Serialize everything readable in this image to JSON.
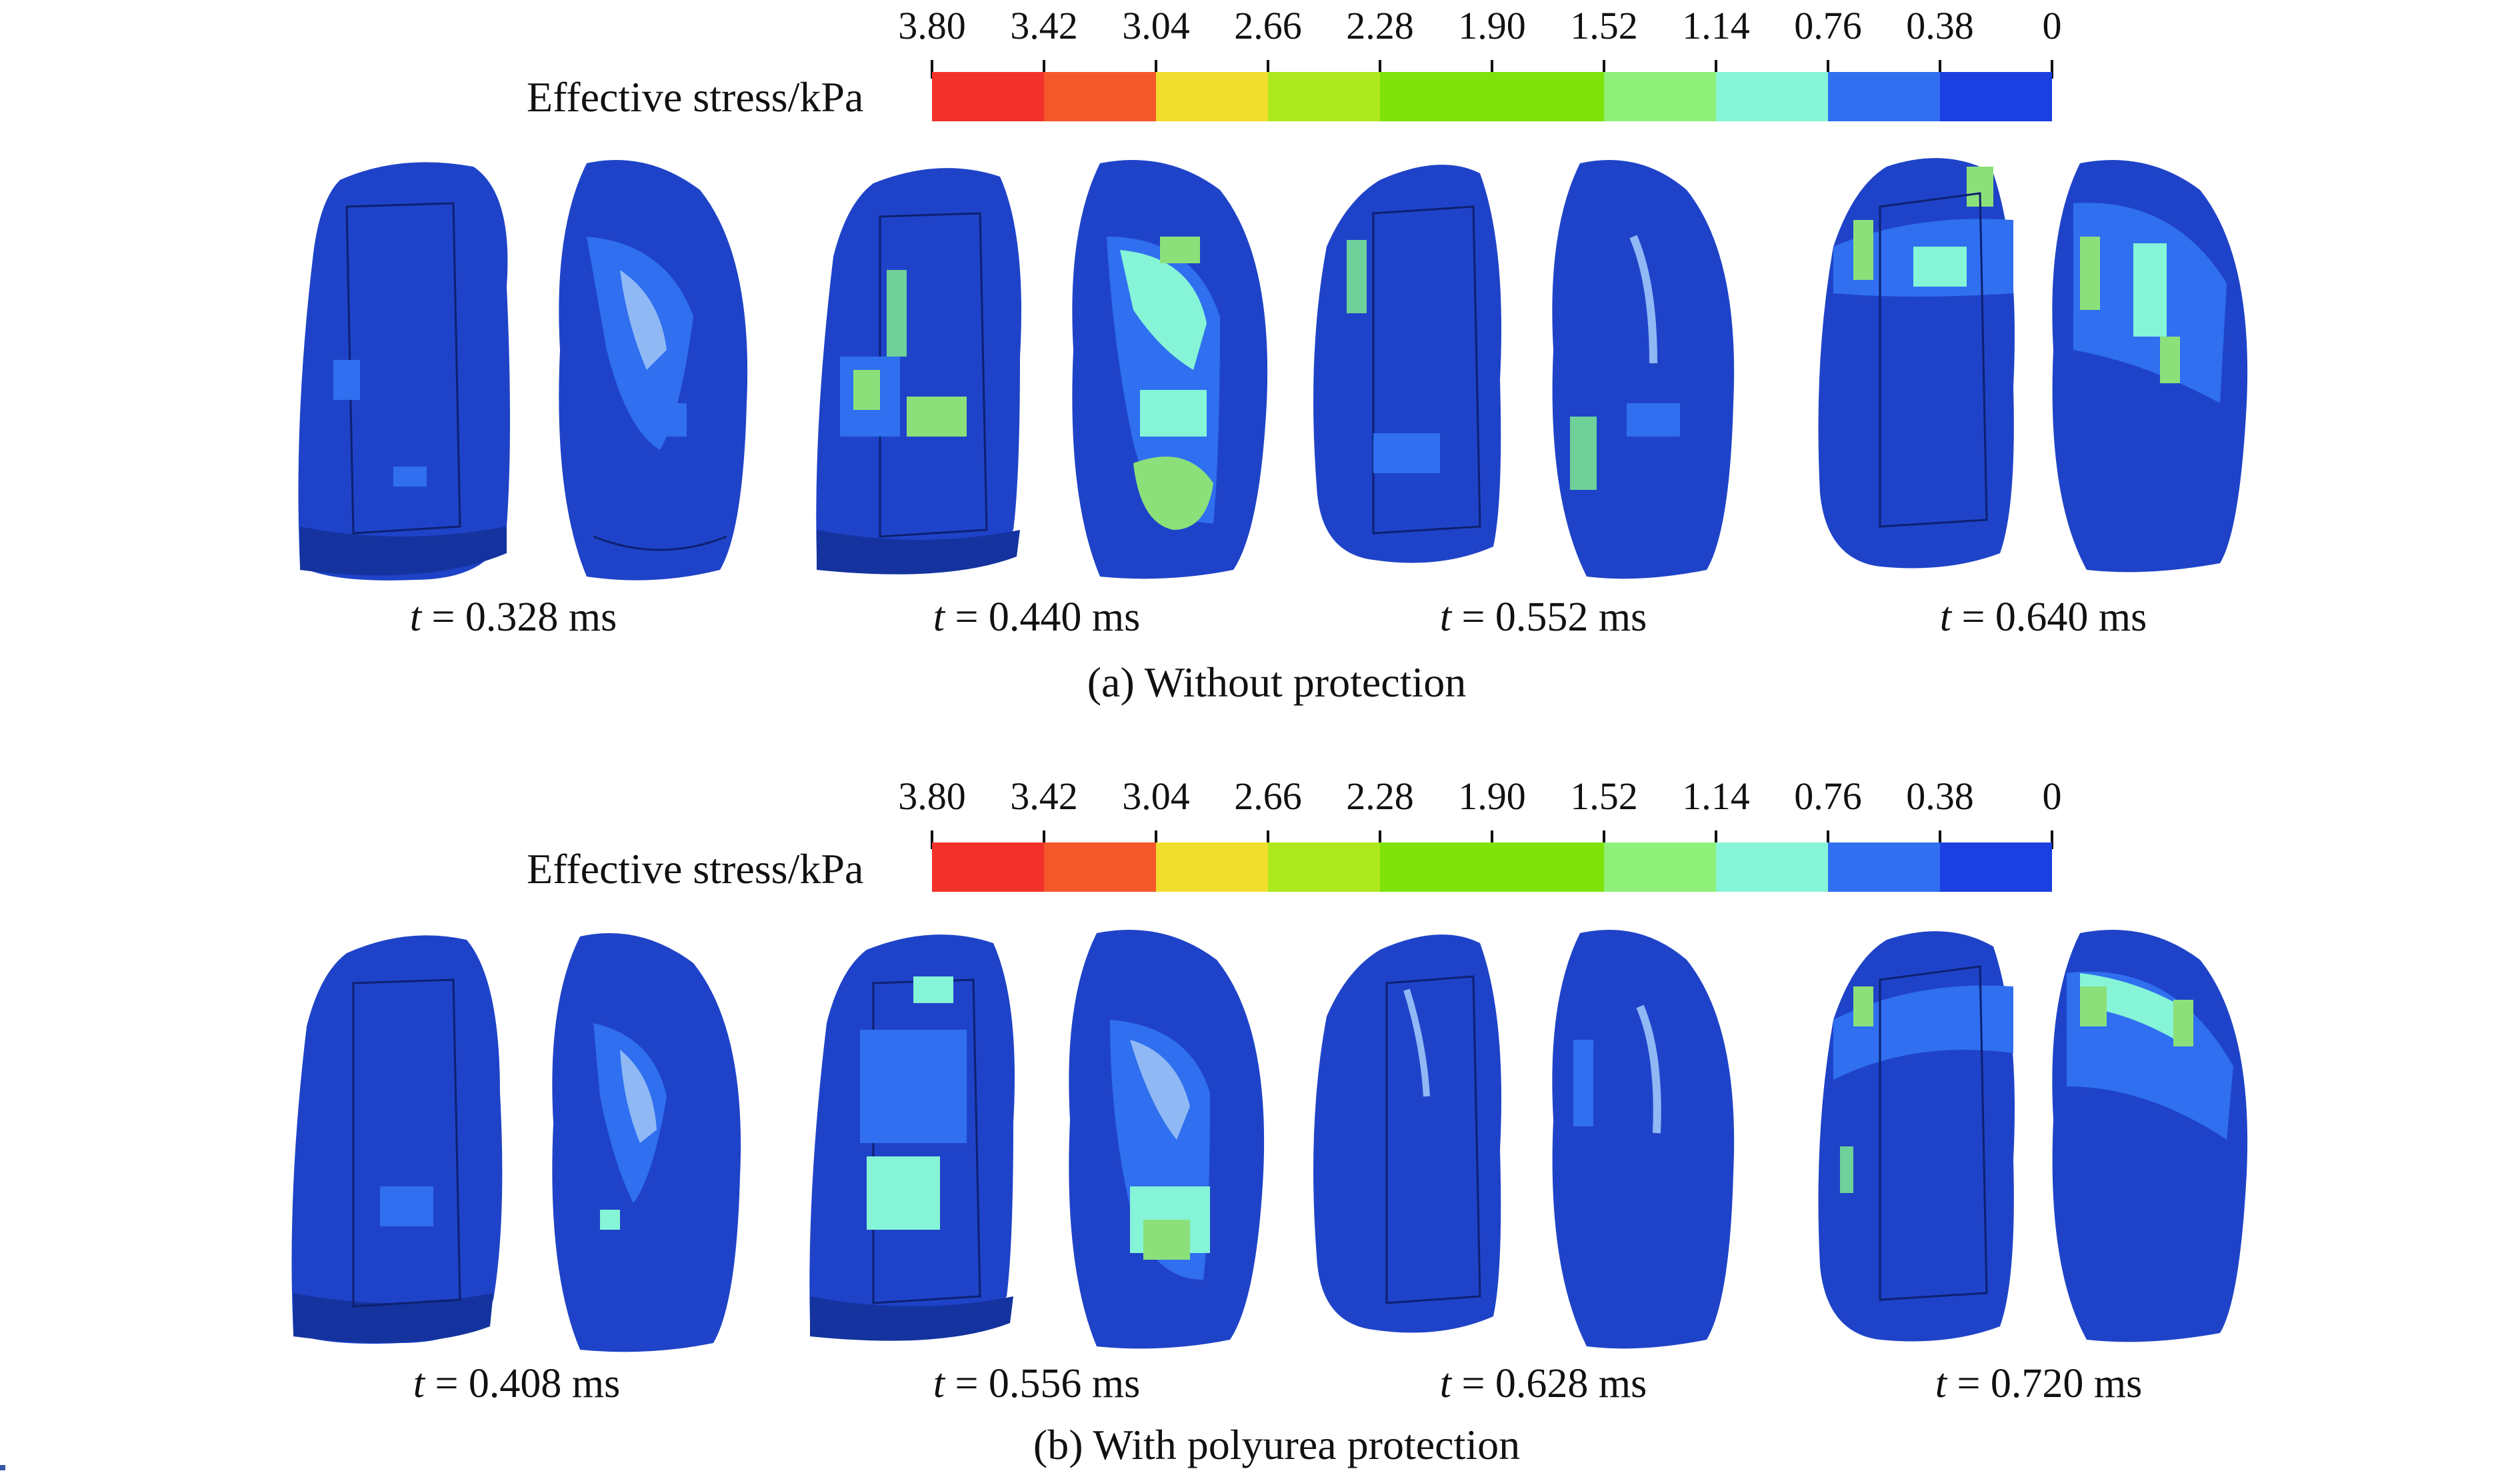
{
  "legend": {
    "title": "Effective stress/kPa",
    "ticks": [
      "3.80",
      "3.42",
      "3.04",
      "2.66",
      "2.28",
      "1.90",
      "1.52",
      "1.14",
      "0.76",
      "0.38",
      "0"
    ],
    "colors": [
      "#f2312a",
      "#f4582a",
      "#f1dd2e",
      "#aee81e",
      "#7fe20a",
      "#7fe20a",
      "#8ff07a",
      "#86f4d6",
      "#2f6ff0",
      "#1b3fe0"
    ]
  },
  "panels": [
    {
      "caption": "(a) Without protection",
      "frames": [
        {
          "t": "t",
          "value": "= 0.328 ms"
        },
        {
          "t": "t",
          "value": "= 0.440 ms"
        },
        {
          "t": "t",
          "value": "= 0.552 ms"
        },
        {
          "t": "t",
          "value": "= 0.640 ms"
        }
      ]
    },
    {
      "caption": "(b) With polyurea protection",
      "frames": [
        {
          "t": "t",
          "value": "= 0.408 ms"
        },
        {
          "t": "t",
          "value": "= 0.556 ms"
        },
        {
          "t": "t",
          "value": "= 0.628 ms"
        },
        {
          "t": "t",
          "value": "= 0.720 ms"
        }
      ]
    }
  ],
  "model_colors": {
    "base": "#1f43c8",
    "dark": "#14339e",
    "low": "#2f6ff0",
    "mid": "#86f4d6",
    "high": "#7fe20a"
  }
}
